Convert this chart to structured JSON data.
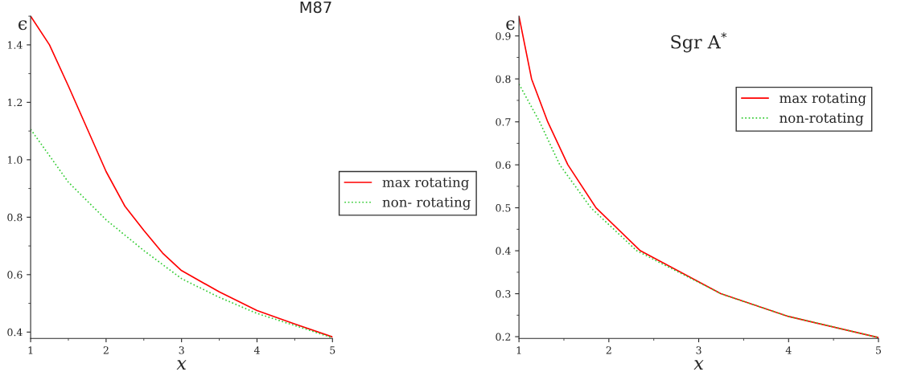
{
  "chart_data": [
    {
      "type": "line",
      "title": "M87",
      "xlabel": "x",
      "ylabel": "ϵ",
      "xlim": [
        1,
        5
      ],
      "ylim": [
        0.378,
        1.5
      ],
      "xticks": [
        1,
        2,
        3,
        4,
        5
      ],
      "yticks": [
        0.4,
        0.6,
        0.8,
        {
          "value": 1,
          "label": "1.0"
        },
        1.2,
        1.4
      ],
      "grid": false,
      "legend": "right",
      "series": [
        {
          "name": "max rotating",
          "color": "#ff0000",
          "line_style": "solid",
          "x": [
            1,
            1.25,
            1.5,
            1.75,
            2,
            2.25,
            2.5,
            2.75,
            3,
            3.5,
            4,
            4.5,
            5
          ],
          "values": [
            1.5,
            1.4,
            1.257,
            1.108,
            0.959,
            0.838,
            0.754,
            0.675,
            0.614,
            0.54,
            0.475,
            0.428,
            0.383
          ]
        },
        {
          "name": "non- rotating",
          "color": "#33cc33",
          "line_style": "dotted",
          "x": [
            1,
            1.5,
            2,
            2.5,
            3,
            3.5,
            4,
            4.5,
            5
          ],
          "values": [
            1.106,
            0.922,
            0.791,
            0.684,
            0.586,
            0.521,
            0.465,
            0.423,
            0.38
          ]
        }
      ]
    },
    {
      "type": "line",
      "title": "Sgr A$^{*}$",
      "xlabel": "x",
      "ylabel": "ϵ",
      "xlim": [
        1,
        5
      ],
      "ylim": [
        0.196,
        0.946
      ],
      "xticks": [
        1,
        2,
        3,
        4,
        5
      ],
      "yticks": [
        0.2,
        0.3,
        0.4,
        0.5,
        0.6,
        0.7,
        0.8,
        0.9
      ],
      "grid": false,
      "legend": "upper right",
      "series": [
        {
          "name": "max rotating",
          "color": "#ff0000",
          "line_style": "solid",
          "x": [
            1,
            1.14,
            1.32,
            1.544,
            1.857,
            2.35,
            3.246,
            4,
            5
          ],
          "values": [
            0.946,
            0.8,
            0.7,
            0.6,
            0.5,
            0.4,
            0.3,
            0.247,
            0.198
          ]
        },
        {
          "name": "non-rotating",
          "color": "#33cc33",
          "line_style": "dotted",
          "x": [
            1,
            1.23,
            1.454,
            1.8,
            2.31,
            3.246,
            4,
            5
          ],
          "values": [
            0.788,
            0.7,
            0.6,
            0.5,
            0.4,
            0.3,
            0.247,
            0.198
          ]
        }
      ]
    }
  ]
}
